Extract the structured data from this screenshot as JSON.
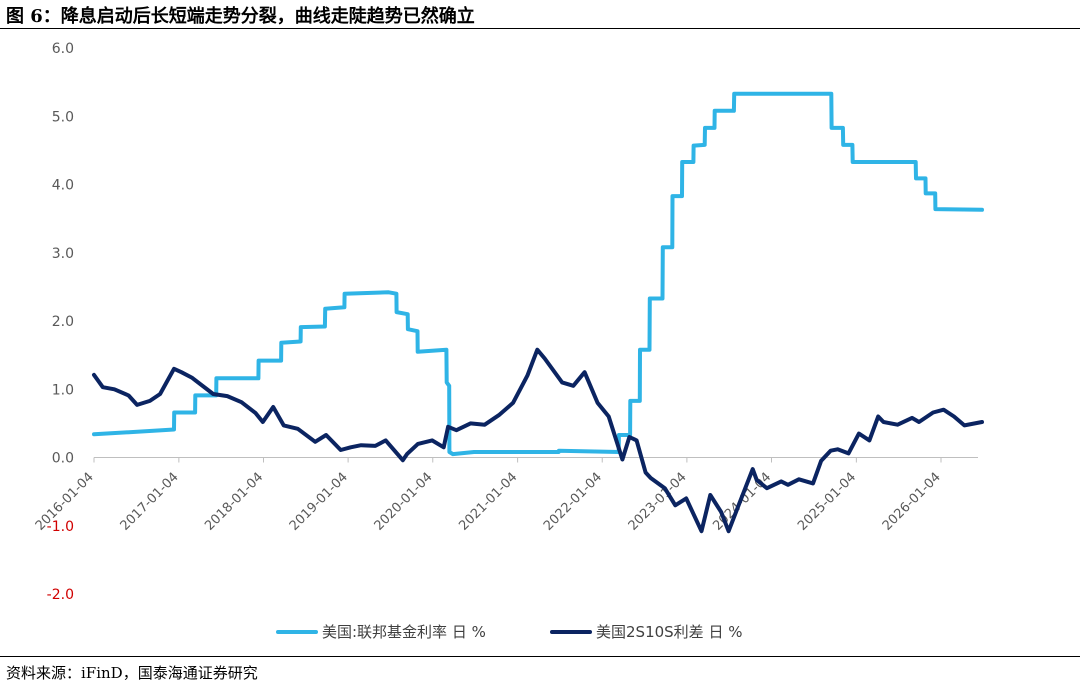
{
  "title": "图 6：降息启动后长短端走势分裂，曲线走陡趋势已然确立",
  "source": "资料来源：iFinD，国泰海通证券研究",
  "colors": {
    "fed_funds": "#2FB4E6",
    "spread": "#0B2461",
    "negative_tick": "#D00000"
  },
  "chart_data": {
    "type": "line",
    "title": "",
    "xlabel": "",
    "ylabel": "",
    "ylim": [
      -2.0,
      6.0
    ],
    "yticks": [
      "6.0",
      "5.0",
      "4.0",
      "3.0",
      "2.0",
      "1.0",
      "0.0",
      "-1.0",
      "-2.0"
    ],
    "yticks_values": [
      6,
      5,
      4,
      3,
      2,
      1,
      0,
      -1,
      -2
    ],
    "x_tick_labels": [
      "2016-01-04",
      "2017-01-04",
      "2018-01-04",
      "2019-01-04",
      "2020-01-04",
      "2021-01-04",
      "2022-01-04",
      "2023-01-04",
      "2024-01-04",
      "2025-01-04",
      "2026-01-04"
    ],
    "x_range": [
      "2016-01-04",
      "2026-06-30"
    ],
    "grid": false,
    "legend_position": "bottom",
    "series": [
      {
        "name": "美国:联邦基金利率 日 %",
        "points": [
          [
            "2016-01-04",
            0.34
          ],
          [
            "2016-12-14",
            0.41
          ],
          [
            "2016-12-15",
            0.66
          ],
          [
            "2017-03-15",
            0.66
          ],
          [
            "2017-03-16",
            0.91
          ],
          [
            "2017-06-14",
            0.91
          ],
          [
            "2017-06-15",
            1.16
          ],
          [
            "2017-12-13",
            1.16
          ],
          [
            "2017-12-14",
            1.42
          ],
          [
            "2018-03-21",
            1.42
          ],
          [
            "2018-03-22",
            1.68
          ],
          [
            "2018-06-13",
            1.7
          ],
          [
            "2018-06-14",
            1.91
          ],
          [
            "2018-09-26",
            1.92
          ],
          [
            "2018-09-27",
            2.18
          ],
          [
            "2018-12-19",
            2.2
          ],
          [
            "2018-12-20",
            2.4
          ],
          [
            "2019-06-28",
            2.42
          ],
          [
            "2019-07-31",
            2.4
          ],
          [
            "2019-08-01",
            2.13
          ],
          [
            "2019-09-18",
            2.1
          ],
          [
            "2019-09-19",
            1.88
          ],
          [
            "2019-10-30",
            1.85
          ],
          [
            "2019-10-31",
            1.55
          ],
          [
            "2020-03-03",
            1.58
          ],
          [
            "2020-03-04",
            1.1
          ],
          [
            "2020-03-15",
            1.05
          ],
          [
            "2020-03-16",
            0.08
          ],
          [
            "2020-03-31",
            0.05
          ],
          [
            "2020-06-30",
            0.08
          ],
          [
            "2021-06-30",
            0.08
          ],
          [
            "2021-07-01",
            0.1
          ],
          [
            "2022-03-16",
            0.08
          ],
          [
            "2022-03-17",
            0.33
          ],
          [
            "2022-05-04",
            0.33
          ],
          [
            "2022-05-05",
            0.83
          ],
          [
            "2022-06-15",
            0.83
          ],
          [
            "2022-06-16",
            1.58
          ],
          [
            "2022-07-27",
            1.58
          ],
          [
            "2022-07-28",
            2.33
          ],
          [
            "2022-09-21",
            2.33
          ],
          [
            "2022-09-22",
            3.08
          ],
          [
            "2022-11-02",
            3.08
          ],
          [
            "2022-11-03",
            3.83
          ],
          [
            "2022-12-14",
            3.83
          ],
          [
            "2022-12-15",
            4.33
          ],
          [
            "2023-02-01",
            4.33
          ],
          [
            "2023-02-02",
            4.57
          ],
          [
            "2023-03-22",
            4.58
          ],
          [
            "2023-03-23",
            4.83
          ],
          [
            "2023-05-03",
            4.83
          ],
          [
            "2023-05-04",
            5.08
          ],
          [
            "2023-07-26",
            5.08
          ],
          [
            "2023-07-27",
            5.33
          ],
          [
            "2024-09-18",
            5.33
          ],
          [
            "2024-09-19",
            4.83
          ],
          [
            "2024-11-07",
            4.83
          ],
          [
            "2024-11-08",
            4.58
          ],
          [
            "2024-12-18",
            4.58
          ],
          [
            "2024-12-19",
            4.33
          ],
          [
            "2025-09-17",
            4.33
          ],
          [
            "2025-09-18",
            4.09
          ],
          [
            "2025-10-29",
            4.09
          ],
          [
            "2025-10-30",
            3.87
          ],
          [
            "2025-12-10",
            3.87
          ],
          [
            "2025-12-11",
            3.64
          ],
          [
            "2026-06-30",
            3.63
          ]
        ]
      },
      {
        "name": "美国2S10S利差 日 %",
        "points": [
          [
            "2016-01-04",
            1.21
          ],
          [
            "2016-02-11",
            1.03
          ],
          [
            "2016-04-01",
            1.0
          ],
          [
            "2016-06-01",
            0.91
          ],
          [
            "2016-07-08",
            0.77
          ],
          [
            "2016-09-01",
            0.83
          ],
          [
            "2016-10-15",
            0.93
          ],
          [
            "2016-12-14",
            1.3
          ],
          [
            "2017-01-15",
            1.25
          ],
          [
            "2017-03-01",
            1.17
          ],
          [
            "2017-06-01",
            0.93
          ],
          [
            "2017-08-01",
            0.9
          ],
          [
            "2017-10-01",
            0.81
          ],
          [
            "2017-12-01",
            0.65
          ],
          [
            "2018-01-01",
            0.52
          ],
          [
            "2018-02-15",
            0.74
          ],
          [
            "2018-04-01",
            0.47
          ],
          [
            "2018-06-01",
            0.42
          ],
          [
            "2018-08-15",
            0.23
          ],
          [
            "2018-10-01",
            0.33
          ],
          [
            "2018-12-03",
            0.11
          ],
          [
            "2019-01-15",
            0.15
          ],
          [
            "2019-03-01",
            0.18
          ],
          [
            "2019-05-01",
            0.17
          ],
          [
            "2019-06-15",
            0.25
          ],
          [
            "2019-08-28",
            -0.04
          ],
          [
            "2019-09-15",
            0.05
          ],
          [
            "2019-11-01",
            0.2
          ],
          [
            "2020-01-01",
            0.25
          ],
          [
            "2020-02-20",
            0.15
          ],
          [
            "2020-03-10",
            0.45
          ],
          [
            "2020-04-15",
            0.4
          ],
          [
            "2020-06-15",
            0.5
          ],
          [
            "2020-08-15",
            0.48
          ],
          [
            "2020-10-15",
            0.62
          ],
          [
            "2020-12-15",
            0.8
          ],
          [
            "2021-02-15",
            1.2
          ],
          [
            "2021-03-30",
            1.58
          ],
          [
            "2021-05-01",
            1.45
          ],
          [
            "2021-07-15",
            1.1
          ],
          [
            "2021-09-01",
            1.05
          ],
          [
            "2021-10-20",
            1.25
          ],
          [
            "2021-12-15",
            0.8
          ],
          [
            "2022-02-01",
            0.6
          ],
          [
            "2022-04-01",
            -0.03
          ],
          [
            "2022-05-01",
            0.3
          ],
          [
            "2022-06-01",
            0.25
          ],
          [
            "2022-07-10",
            -0.22
          ],
          [
            "2022-08-01",
            -0.3
          ],
          [
            "2022-10-01",
            -0.45
          ],
          [
            "2022-11-15",
            -0.7
          ],
          [
            "2023-01-01",
            -0.6
          ],
          [
            "2023-03-08",
            -1.08
          ],
          [
            "2023-04-15",
            -0.55
          ],
          [
            "2023-06-01",
            -0.8
          ],
          [
            "2023-07-03",
            -1.08
          ],
          [
            "2023-08-15",
            -0.7
          ],
          [
            "2023-10-15",
            -0.17
          ],
          [
            "2023-11-01",
            -0.33
          ],
          [
            "2023-12-15",
            -0.45
          ],
          [
            "2024-02-15",
            -0.35
          ],
          [
            "2024-03-15",
            -0.4
          ],
          [
            "2024-05-01",
            -0.32
          ],
          [
            "2024-07-01",
            -0.38
          ],
          [
            "2024-08-05",
            -0.05
          ],
          [
            "2024-09-15",
            0.1
          ],
          [
            "2024-10-15",
            0.12
          ],
          [
            "2024-12-01",
            0.06
          ],
          [
            "2025-01-15",
            0.35
          ],
          [
            "2025-03-01",
            0.25
          ],
          [
            "2025-04-08",
            0.6
          ],
          [
            "2025-05-01",
            0.52
          ],
          [
            "2025-07-01",
            0.48
          ],
          [
            "2025-09-01",
            0.58
          ],
          [
            "2025-10-01",
            0.52
          ],
          [
            "2025-12-01",
            0.66
          ],
          [
            "2026-01-15",
            0.7
          ],
          [
            "2026-03-01",
            0.6
          ],
          [
            "2026-04-15",
            0.47
          ],
          [
            "2026-06-30",
            0.52
          ]
        ]
      }
    ]
  }
}
